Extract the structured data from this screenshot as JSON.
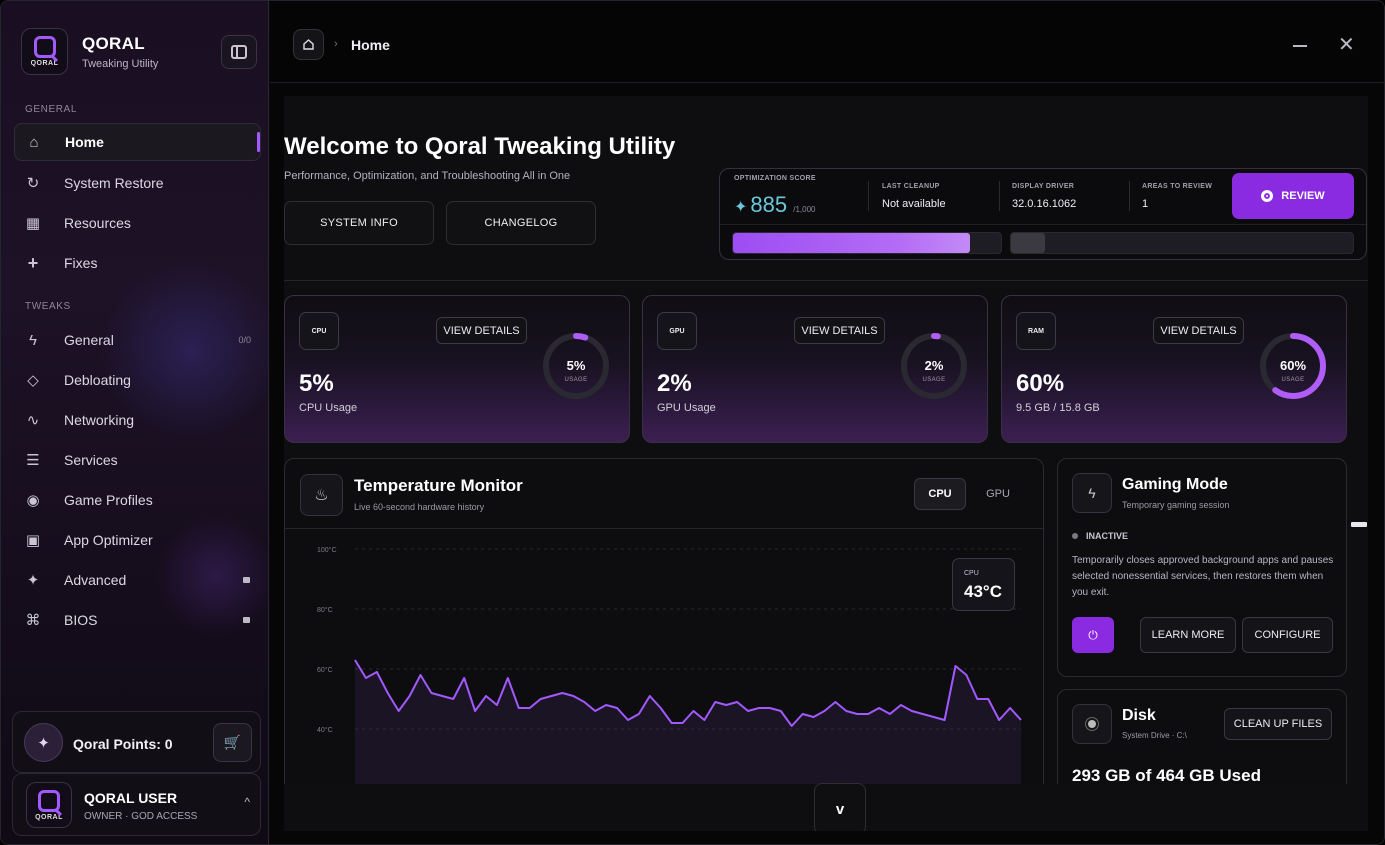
{
  "app": {
    "title": "QORAL",
    "subtitle": "Tweaking Utility",
    "logo_text": "QORAL"
  },
  "sidebar": {
    "section_general": "GENERAL",
    "section_tweaks": "TWEAKS",
    "items": [
      {
        "label": "Home",
        "icon": "home-icon",
        "active": true
      },
      {
        "label": "System Restore",
        "icon": "restore-icon"
      },
      {
        "label": "Resources",
        "icon": "grid-icon"
      },
      {
        "label": "Fixes",
        "icon": "plus-icon"
      },
      {
        "label": "General",
        "icon": "bolt-icon",
        "badge": "0/0"
      },
      {
        "label": "Debloating",
        "icon": "diamond-icon"
      },
      {
        "label": "Networking",
        "icon": "wave-icon"
      },
      {
        "label": "Services",
        "icon": "list-icon"
      },
      {
        "label": "Game Profiles",
        "icon": "gamepad-icon"
      },
      {
        "label": "App Optimizer",
        "icon": "window-icon"
      },
      {
        "label": "Advanced",
        "icon": "sparkle-icon",
        "locked": true
      },
      {
        "label": "BIOS",
        "icon": "command-icon",
        "locked": true
      }
    ],
    "points_label": "Qoral Points: 0",
    "user": {
      "name": "QORAL USER",
      "role": "OWNER · GOD ACCESS"
    }
  },
  "topbar": {
    "breadcrumb_sep": "›",
    "breadcrumb": "Home"
  },
  "hero": {
    "title": "Welcome to Qoral Tweaking Utility",
    "subtitle": "Performance, Optimization, and Troubleshooting All in One",
    "btn_system_info": "SYSTEM INFO",
    "btn_changelog": "CHANGELOG"
  },
  "score": {
    "label": "OPTIMIZATION SCORE",
    "value": "885",
    "max": "/1,000",
    "last_cleanup_label": "LAST CLEANUP",
    "last_cleanup": "Not available",
    "display_driver_label": "DISPLAY DRIVER",
    "display_driver": "32.0.16.1062",
    "areas_label": "AREAS TO REVIEW",
    "areas": "1",
    "review_label": "REVIEW",
    "bar1_fraction": 0.885,
    "bar2_fraction": 0.1,
    "accent": "#8a2be2"
  },
  "stats": [
    {
      "chip": "CPU",
      "details": "VIEW DETAILS",
      "value": "5%",
      "label": "CPU Usage",
      "ring_pct": "5%",
      "ring_sub": "USAGE",
      "fraction": 0.05
    },
    {
      "chip": "GPU",
      "details": "VIEW DETAILS",
      "value": "2%",
      "label": "GPU Usage",
      "ring_pct": "2%",
      "ring_sub": "USAGE",
      "fraction": 0.02
    },
    {
      "chip": "RAM",
      "details": "VIEW DETAILS",
      "value": "60%",
      "label": "9.5 GB / 15.8 GB",
      "ring_pct": "60%",
      "ring_sub": "USAGE",
      "fraction": 0.6
    }
  ],
  "temperature": {
    "title": "Temperature Monitor",
    "subtitle": "Live 60-second hardware history",
    "toggle_cpu": "CPU",
    "toggle_gpu": "GPU",
    "tooltip_label": "CPU",
    "tooltip_value": "43°C"
  },
  "chart_data": {
    "type": "area",
    "ylim": [
      20,
      100
    ],
    "yticks": [
      "100°C",
      "80°C",
      "60°C",
      "40°C"
    ],
    "ytick_values": [
      100,
      80,
      60,
      40
    ],
    "grid": true,
    "series": [
      {
        "values": [
          63,
          57,
          59,
          52,
          46,
          51,
          58,
          52,
          51,
          50,
          57,
          46,
          51,
          48,
          57,
          47,
          47,
          50,
          51,
          52,
          51,
          49,
          46,
          48,
          47,
          43,
          45,
          51,
          47,
          42,
          42,
          46,
          43,
          49,
          48,
          49,
          46,
          47,
          47,
          46,
          41,
          45,
          44,
          46,
          49,
          46,
          45,
          45,
          47,
          45,
          48,
          46,
          45,
          44,
          43,
          61,
          58,
          50,
          50,
          43,
          47,
          43
        ]
      }
    ],
    "color": "#a259ff"
  },
  "gaming": {
    "title": "Gaming Mode",
    "subtitle": "Temporary gaming session",
    "status": "INACTIVE",
    "description": "Temporarily closes approved background apps and pauses selected nonessential services, then restores them when you exit.",
    "learn_more": "LEARN MORE",
    "configure": "CONFIGURE"
  },
  "disk": {
    "title": "Disk",
    "subtitle": "System Drive · C:\\",
    "cleanup": "CLEAN UP FILES",
    "usage": "293 GB of 464 GB Used"
  },
  "scroll_down_label": "v"
}
